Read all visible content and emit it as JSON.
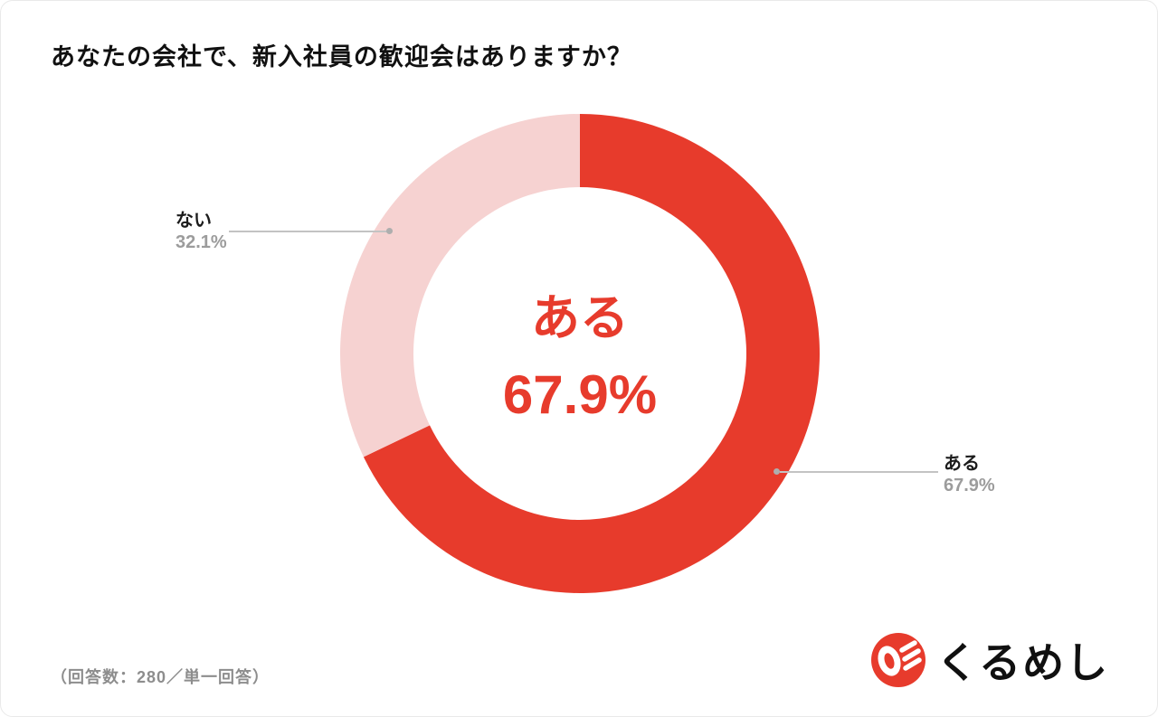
{
  "header": {
    "title": "あなたの会社で、新入社員の歓迎会はありますか？"
  },
  "footer": {
    "note": "（回答数：280／単一回答）",
    "brand": "くるめし"
  },
  "chart_data": {
    "type": "pie",
    "donut": true,
    "title": "あなたの会社で、新入社員の歓迎会はありますか？",
    "categories": [
      "ある",
      "ない"
    ],
    "values": [
      67.9,
      32.1
    ],
    "unit": "%",
    "colors": [
      "#e73b2c",
      "#f6d2d1"
    ],
    "start_angle": 0,
    "direction": "clockwise",
    "legend_position": "none",
    "center_label": {
      "label": "ある",
      "value": "67.9%"
    },
    "callouts": [
      {
        "label": "ない",
        "value": "32.1%",
        "side": "left"
      },
      {
        "label": "ある",
        "value": "67.9%",
        "side": "right"
      }
    ],
    "sample_note": "（回答数：280／単一回答）",
    "sample_size": 280,
    "answer_type": "単一回答",
    "accent_color": "#e73b2c"
  }
}
